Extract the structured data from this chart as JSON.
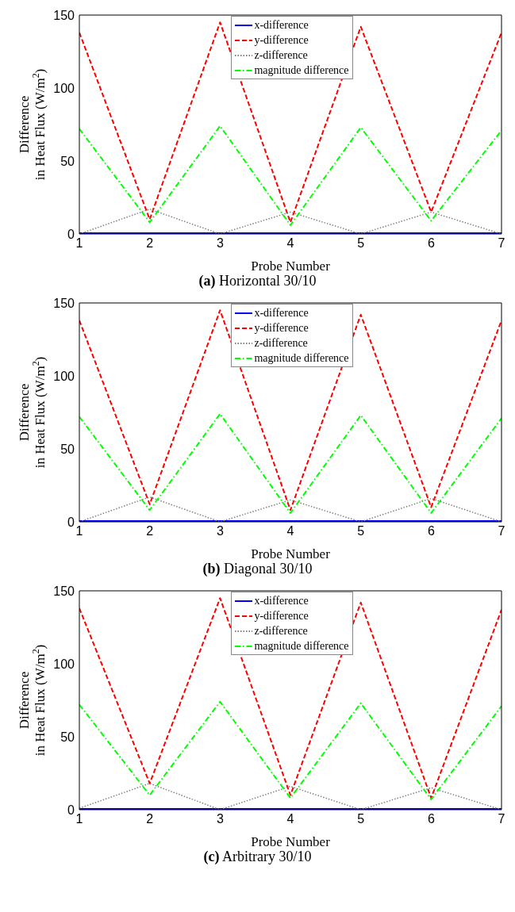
{
  "chart_data": [
    {
      "type": "line",
      "title": "(a) Horizontal 30/10",
      "xlabel": "Probe Number",
      "ylabel": "Difference\nin Heat Flux (W/m$^{2}$)",
      "x": [
        1,
        2,
        3,
        4,
        5,
        6,
        7
      ],
      "xlim": [
        1,
        7
      ],
      "xticks": [
        1,
        2,
        3,
        4,
        5,
        6,
        7
      ],
      "ylim": [
        0,
        150
      ],
      "yticks": [
        0,
        50,
        100,
        150
      ],
      "grid": false,
      "legend": "top",
      "marker": "none",
      "series": [
        {
          "name": "x-difference",
          "color": "#0000ff",
          "line_style": "solid",
          "values": [
            0.5,
            0.5,
            0.5,
            0.5,
            0.5,
            0.5,
            0.5
          ]
        },
        {
          "name": "y-difference",
          "color": "#ff0000",
          "line_style": "dashed",
          "values": [
            138,
            10,
            145,
            8,
            142,
            15,
            138
          ]
        },
        {
          "name": "z-difference",
          "color": "#808080",
          "line_style": "dotted",
          "values": [
            0,
            17,
            0,
            15,
            0,
            15,
            0
          ]
        },
        {
          "name": "magnitude difference",
          "color": "#00ff00",
          "line_style": "dashdot",
          "values": [
            72,
            8,
            74,
            6,
            73,
            9,
            71
          ]
        }
      ]
    },
    {
      "type": "line",
      "title": "(b) Diagonal 30/10",
      "xlabel": "Probe Number",
      "ylabel": "Difference\nin Heat Flux (W/m$^{2}$)",
      "x": [
        1,
        2,
        3,
        4,
        5,
        6,
        7
      ],
      "xlim": [
        1,
        7
      ],
      "xticks": [
        1,
        2,
        3,
        4,
        5,
        6,
        7
      ],
      "ylim": [
        0,
        150
      ],
      "yticks": [
        0,
        50,
        100,
        150
      ],
      "grid": false,
      "legend": "top",
      "marker": "none",
      "series": [
        {
          "name": "x-difference",
          "color": "#0000ff",
          "line_style": "solid",
          "values": [
            0.5,
            0.5,
            0.5,
            0.5,
            0.5,
            0.5,
            0.5
          ]
        },
        {
          "name": "y-difference",
          "color": "#ff0000",
          "line_style": "dashed",
          "values": [
            138,
            12,
            145,
            8,
            142,
            10,
            138
          ]
        },
        {
          "name": "z-difference",
          "color": "#808080",
          "line_style": "dotted",
          "values": [
            0,
            17,
            0,
            15,
            0,
            16,
            0
          ]
        },
        {
          "name": "magnitude difference",
          "color": "#00ff00",
          "line_style": "dashdot",
          "values": [
            72,
            8,
            74,
            6,
            73,
            6,
            71
          ]
        }
      ]
    },
    {
      "type": "line",
      "title": "(c) Arbitrary 30/10",
      "xlabel": "Probe Number",
      "ylabel": "Difference\nin Heat Flux (W/m$^{2}$)",
      "x": [
        1,
        2,
        3,
        4,
        5,
        6,
        7
      ],
      "xlim": [
        1,
        7
      ],
      "xticks": [
        1,
        2,
        3,
        4,
        5,
        6,
        7
      ],
      "ylim": [
        0,
        150
      ],
      "yticks": [
        0,
        50,
        100,
        150
      ],
      "grid": false,
      "legend": "top",
      "marker": "none",
      "series": [
        {
          "name": "x-difference",
          "color": "#0000ff",
          "line_style": "solid",
          "values": [
            0.5,
            0.5,
            0.5,
            0.5,
            0.5,
            0.5,
            0.5
          ]
        },
        {
          "name": "y-difference",
          "color": "#ff0000",
          "line_style": "dashed",
          "values": [
            138,
            18,
            145,
            10,
            142,
            8,
            137
          ]
        },
        {
          "name": "z-difference",
          "color": "#808080",
          "line_style": "dotted",
          "values": [
            1,
            18,
            0,
            16,
            0,
            15,
            0
          ]
        },
        {
          "name": "magnitude difference",
          "color": "#00ff00",
          "line_style": "dashdot",
          "values": [
            72,
            10,
            74,
            8,
            73,
            7,
            71
          ]
        }
      ]
    }
  ]
}
